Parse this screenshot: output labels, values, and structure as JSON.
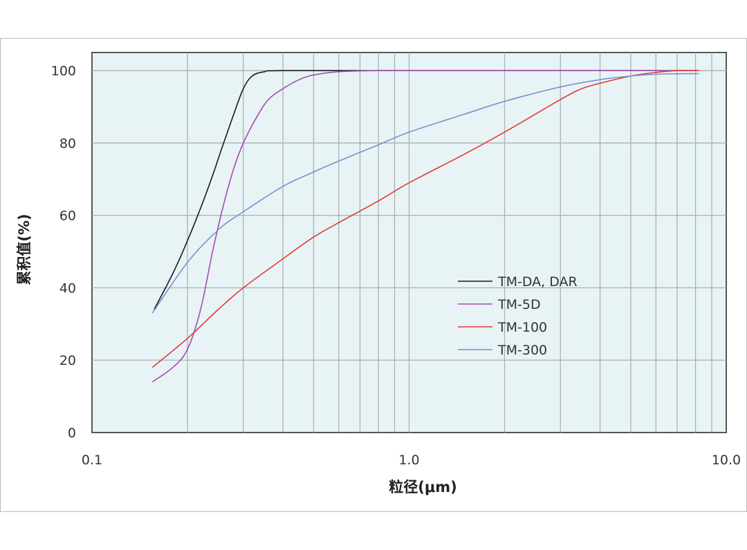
{
  "chart_data": {
    "type": "line",
    "title": "",
    "xlabel": "粒径(μm)",
    "ylabel": "累积值(%)",
    "xscale": "log",
    "xlim": [
      0.1,
      10.0
    ],
    "ylim": [
      0,
      105
    ],
    "grid": true,
    "legend_position": "center-right",
    "x_tick_labels": [
      "0.1",
      "1.0",
      "10.0"
    ],
    "y_tick_labels": [
      "0",
      "20",
      "40",
      "60",
      "80",
      "100"
    ],
    "y_ticks": [
      0,
      20,
      40,
      60,
      80,
      100
    ],
    "series": [
      {
        "name": "TM-DA, DAR",
        "color": "#1a1a1a",
        "points": [
          [
            0.157,
            34
          ],
          [
            0.18,
            44
          ],
          [
            0.2,
            53
          ],
          [
            0.22,
            62
          ],
          [
            0.24,
            71
          ],
          [
            0.26,
            80
          ],
          [
            0.28,
            88
          ],
          [
            0.3,
            95
          ],
          [
            0.32,
            98.5
          ],
          [
            0.35,
            99.7
          ],
          [
            0.4,
            100
          ],
          [
            1.0,
            100
          ],
          [
            3.0,
            100
          ],
          [
            8.2,
            100
          ]
        ]
      },
      {
        "name": "TM-5D",
        "color": "#a04bb4",
        "points": [
          [
            0.155,
            14
          ],
          [
            0.18,
            18
          ],
          [
            0.2,
            23
          ],
          [
            0.22,
            34
          ],
          [
            0.24,
            50
          ],
          [
            0.26,
            63
          ],
          [
            0.28,
            73
          ],
          [
            0.3,
            80
          ],
          [
            0.33,
            87
          ],
          [
            0.36,
            92
          ],
          [
            0.4,
            95
          ],
          [
            0.45,
            97.5
          ],
          [
            0.5,
            98.8
          ],
          [
            0.6,
            99.7
          ],
          [
            0.8,
            100
          ],
          [
            1.0,
            100
          ],
          [
            3.0,
            100
          ],
          [
            8.2,
            100
          ]
        ]
      },
      {
        "name": "TM-100",
        "color": "#e03a36",
        "points": [
          [
            0.155,
            18
          ],
          [
            0.2,
            26
          ],
          [
            0.25,
            34
          ],
          [
            0.3,
            40
          ],
          [
            0.4,
            48
          ],
          [
            0.5,
            54
          ],
          [
            0.6,
            58
          ],
          [
            0.8,
            64
          ],
          [
            1.0,
            69
          ],
          [
            1.5,
            77
          ],
          [
            2.0,
            83
          ],
          [
            3.0,
            92
          ],
          [
            3.5,
            95
          ],
          [
            4.0,
            96.5
          ],
          [
            5.0,
            98.5
          ],
          [
            6.0,
            99.5
          ],
          [
            7.0,
            100
          ],
          [
            8.2,
            100
          ]
        ]
      },
      {
        "name": "TM-300",
        "color": "#7b8fcf",
        "points": [
          [
            0.155,
            33
          ],
          [
            0.2,
            47
          ],
          [
            0.25,
            56
          ],
          [
            0.3,
            61
          ],
          [
            0.4,
            68
          ],
          [
            0.5,
            72
          ],
          [
            0.6,
            75
          ],
          [
            0.8,
            79.5
          ],
          [
            1.0,
            83
          ],
          [
            1.5,
            88
          ],
          [
            2.0,
            91.5
          ],
          [
            3.0,
            95.5
          ],
          [
            4.0,
            97.5
          ],
          [
            5.0,
            98.5
          ],
          [
            6.0,
            99
          ],
          [
            8.2,
            99.2
          ]
        ]
      }
    ]
  }
}
